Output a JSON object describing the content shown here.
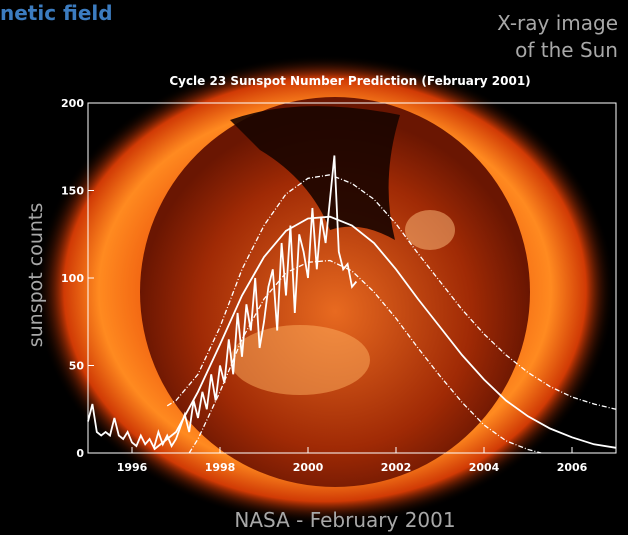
{
  "header": {
    "cropped_title": "netic field",
    "image_label": [
      "X-ray image",
      "of the Sun"
    ],
    "caption": "NASA - February 2001"
  },
  "chart_data": {
    "type": "line",
    "title": "Cycle 23 Sunspot Number Prediction (February 2001)",
    "y_label": "sunspot counts",
    "xlim": [
      1995,
      2007
    ],
    "xticks": [
      1996,
      1998,
      2000,
      2002,
      2004,
      2006
    ],
    "ylim": [
      0,
      200
    ],
    "yticks": [
      0,
      50,
      100,
      150,
      200
    ],
    "series": [
      {
        "name": "observed",
        "color": "#ffffff",
        "style": "solid",
        "x": [
          1995.0,
          1995.1,
          1995.2,
          1995.3,
          1995.4,
          1995.5,
          1995.6,
          1995.7,
          1995.8,
          1995.9,
          1996.0,
          1996.1,
          1996.2,
          1996.3,
          1996.4,
          1996.5,
          1996.6,
          1996.7,
          1996.8,
          1996.9,
          1997.0,
          1997.1,
          1997.2,
          1997.3,
          1997.4,
          1997.5,
          1997.6,
          1997.7,
          1997.8,
          1997.9,
          1998.0,
          1998.1,
          1998.2,
          1998.3,
          1998.4,
          1998.5,
          1998.6,
          1998.7,
          1998.8,
          1998.9,
          1999.0,
          1999.1,
          1999.2,
          1999.3,
          1999.4,
          1999.5,
          1999.6,
          1999.7,
          1999.8,
          1999.9,
          2000.0,
          2000.1,
          2000.2,
          2000.3,
          2000.4,
          2000.5,
          2000.6,
          2000.7,
          2000.8,
          2000.9,
          2001.0,
          2001.1
        ],
        "values": [
          18,
          28,
          12,
          10,
          12,
          10,
          20,
          10,
          8,
          12,
          6,
          4,
          10,
          5,
          8,
          3,
          12,
          5,
          10,
          4,
          8,
          15,
          22,
          12,
          30,
          20,
          35,
          25,
          45,
          30,
          50,
          40,
          65,
          45,
          80,
          55,
          85,
          70,
          100,
          60,
          75,
          95,
          105,
          70,
          120,
          90,
          130,
          80,
          125,
          115,
          100,
          140,
          105,
          135,
          120,
          145,
          170,
          115,
          105,
          108,
          95,
          98
        ]
      },
      {
        "name": "predicted",
        "color": "#ffffff",
        "style": "solid",
        "x": [
          1996.5,
          1997,
          1997.5,
          1998,
          1998.5,
          1999,
          1999.5,
          2000,
          2000.5,
          2001,
          2001.5,
          2002,
          2002.5,
          2003,
          2003.5,
          2004,
          2004.5,
          2005,
          2005.5,
          2006,
          2006.5,
          2007
        ],
        "values": [
          2,
          12,
          35,
          62,
          90,
          112,
          127,
          134,
          135,
          130,
          120,
          105,
          88,
          72,
          56,
          42,
          30,
          21,
          14,
          9,
          5,
          3
        ]
      },
      {
        "name": "upper",
        "color": "#ffffff",
        "style": "dashdot",
        "x": [
          1996.8,
          1997,
          1997.5,
          1998,
          1998.5,
          1999,
          1999.5,
          2000,
          2000.5,
          2001,
          2001.5,
          2002,
          2002.5,
          2003,
          2003.5,
          2004,
          2004.5,
          2005,
          2005.5,
          2006,
          2006.5,
          2007
        ],
        "values": [
          27,
          30,
          45,
          72,
          105,
          130,
          148,
          157,
          159,
          154,
          145,
          131,
          114,
          98,
          82,
          68,
          56,
          46,
          38,
          32,
          28,
          25
        ]
      },
      {
        "name": "lower",
        "color": "#ffffff",
        "style": "dashdot",
        "x": [
          1997.3,
          1997.5,
          1998,
          1998.5,
          1999,
          1999.5,
          2000,
          2000.5,
          2001,
          2001.5,
          2002,
          2002.5,
          2003,
          2003.5,
          2004,
          2004.5,
          2005,
          2005.3
        ],
        "values": [
          0,
          8,
          35,
          65,
          88,
          103,
          109,
          110,
          104,
          92,
          77,
          60,
          44,
          29,
          16,
          7,
          2,
          0
        ]
      }
    ]
  }
}
